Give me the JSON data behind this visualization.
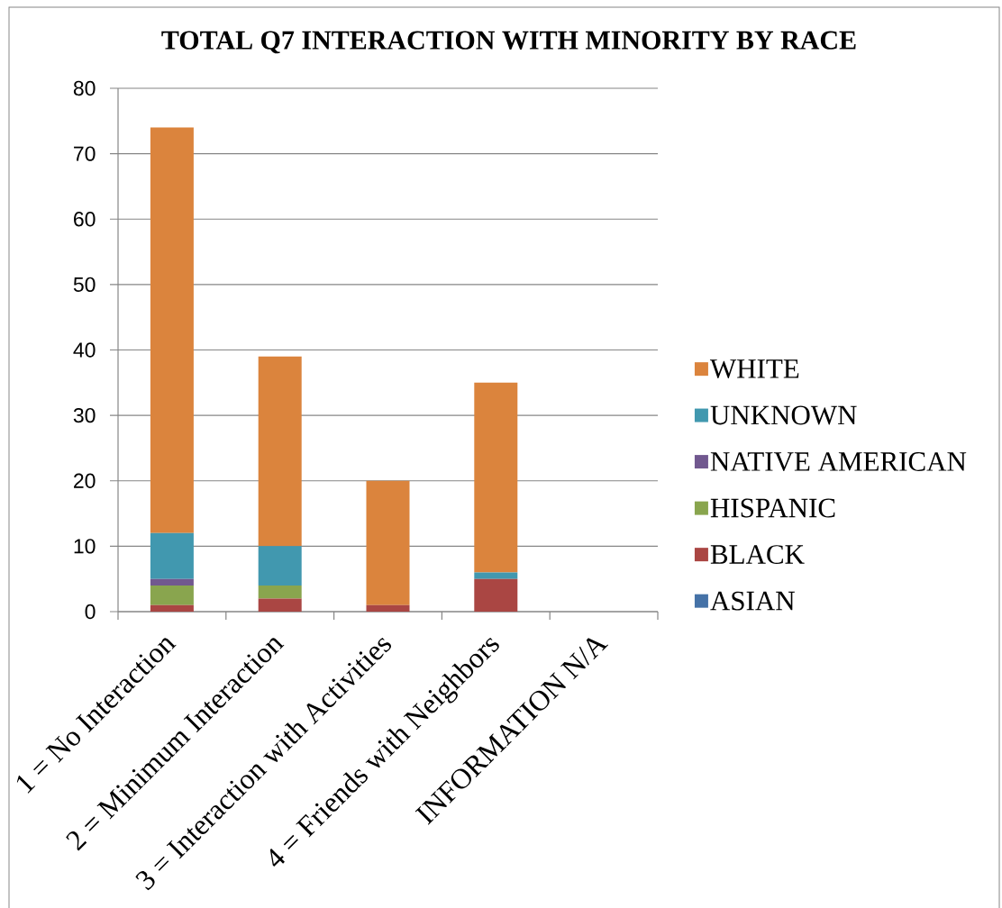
{
  "chart_data": {
    "type": "bar",
    "title": "TOTAL Q7 INTERACTION WITH MINORITY BY RACE",
    "categories": [
      "1 = No Interaction",
      "2 = Minimum Interaction",
      "3 = Interaction with Activities",
      "4 = Friends with Neighbors",
      "INFORMATION N/A"
    ],
    "series": [
      {
        "name": "ASIAN",
        "color": "#4572a7",
        "values": [
          0,
          0,
          0,
          0,
          0
        ]
      },
      {
        "name": "BLACK",
        "color": "#aa4643",
        "values": [
          1,
          2,
          1,
          5,
          0
        ]
      },
      {
        "name": "HISPANIC",
        "color": "#89a54e",
        "values": [
          3,
          2,
          0,
          0,
          0
        ]
      },
      {
        "name": "NATIVE AMERICAN",
        "color": "#71588f",
        "values": [
          1,
          0,
          0,
          0,
          0
        ]
      },
      {
        "name": "UNKNOWN",
        "color": "#4198af",
        "values": [
          7,
          6,
          0,
          1,
          0
        ]
      },
      {
        "name": "WHITE",
        "color": "#db843d",
        "values": [
          62,
          29,
          19,
          29,
          0
        ]
      }
    ],
    "stacked": true,
    "ylim": [
      0,
      80
    ],
    "yticks": [
      0,
      10,
      20,
      30,
      40,
      50,
      60,
      70,
      80
    ],
    "grid": "y",
    "legend": "right"
  }
}
